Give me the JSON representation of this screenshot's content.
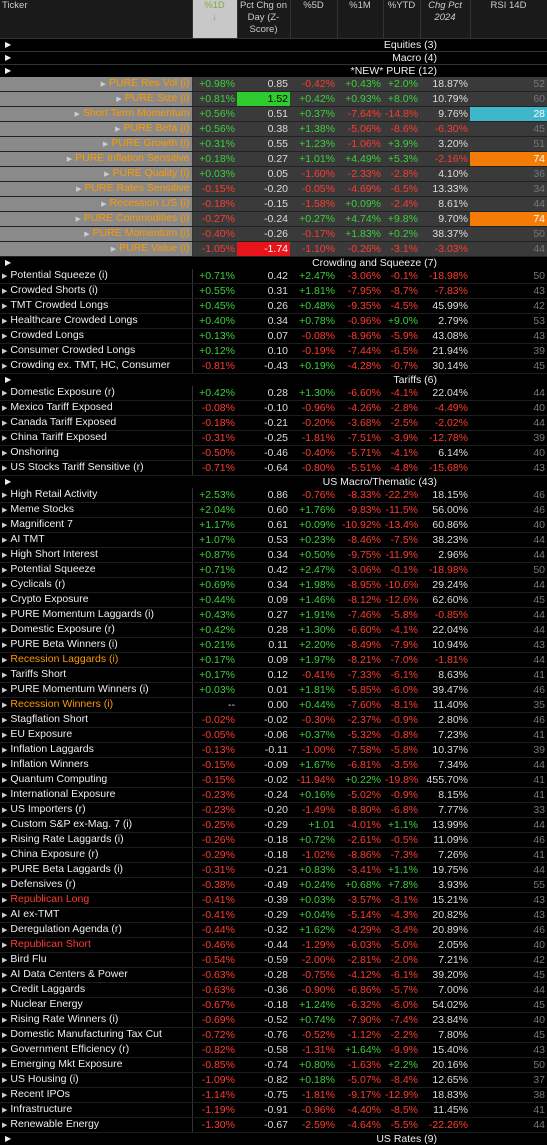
{
  "header": {
    "columns": [
      "Ticker",
      "%1D",
      "Pct Chg on Day (Z-Score)",
      "%5D",
      "%1M",
      "%YTD",
      "Chg Pct 2024",
      "RSI 14D"
    ],
    "sort_arrow": "↓"
  },
  "sections": [
    {
      "title": "Equities (3)",
      "rows": []
    },
    {
      "title": "Macro (4)",
      "rows": []
    },
    {
      "title": "*NEW* PURE (12)",
      "rows": [
        {
          "name": "PURE Res Vol (i)",
          "values": [
            "+0.98%",
            "0.85",
            "-0.42%",
            "+0.43%",
            "+2.0%",
            "18.87%",
            "52"
          ]
        },
        {
          "name": "PURE Size (i)",
          "values": [
            "+0.81%",
            "1.52",
            "+0.42%",
            "+0.93%",
            "+8.0%",
            "10.79%",
            "60"
          ]
        },
        {
          "name": "Short Term Momentum",
          "values": [
            "+0.56%",
            "0.51",
            "+0.37%",
            "-7.64%",
            "-14.8%",
            "9.76%",
            "28"
          ]
        },
        {
          "name": "PURE Beta (i)",
          "values": [
            "+0.56%",
            "0.38",
            "+1.38%",
            "-5.06%",
            "-8.6%",
            "-6.30%",
            "45"
          ]
        },
        {
          "name": "PURE Growth (i)",
          "values": [
            "+0.31%",
            "0.55",
            "+1.23%",
            "-1.06%",
            "+3.9%",
            "3.20%",
            "51"
          ]
        },
        {
          "name": "PURE Inflation Sensitive",
          "values": [
            "+0.18%",
            "0.27",
            "+1.01%",
            "+4.49%",
            "+5.3%",
            "-2.16%",
            "74"
          ]
        },
        {
          "name": "PURE Quality (i)",
          "values": [
            "+0.03%",
            "0.05",
            "-1.60%",
            "-2.33%",
            "-2.8%",
            "4.10%",
            "36"
          ]
        },
        {
          "name": "PURE Rates Sensitive",
          "values": [
            "-0.15%",
            "-0.20",
            "-0.05%",
            "-4.69%",
            "-6.5%",
            "13.33%",
            "34"
          ]
        },
        {
          "name": "Recession L/S (i)",
          "values": [
            "-0.18%",
            "-0.15",
            "-1.58%",
            "+0.09%",
            "-2.4%",
            "8.61%",
            "44"
          ]
        },
        {
          "name": "PURE Commodities (i)",
          "values": [
            "-0.27%",
            "-0.24",
            "+0.27%",
            "+4.74%",
            "+9.8%",
            "9.70%",
            "74"
          ]
        },
        {
          "name": "PURE Momentum (i)",
          "values": [
            "-0.40%",
            "-0.26",
            "-0.17%",
            "+1.83%",
            "+0.2%",
            "38.37%",
            "50"
          ]
        },
        {
          "name": "PURE Value (i)",
          "values": [
            "-1.05%",
            "-1.74",
            "-1.10%",
            "-0.26%",
            "-3.1%",
            "-3.03%",
            "44"
          ]
        }
      ]
    },
    {
      "title": "Crowding and Squeeze (7)",
      "rows": [
        {
          "name": "Potential Squeeze (i)",
          "values": [
            "+0.71%",
            "0.42",
            "+2.47%",
            "-3.06%",
            "-0.1%",
            "-18.98%",
            "50"
          ]
        },
        {
          "name": "Crowded Shorts (i)",
          "values": [
            "+0.55%",
            "0.31",
            "+1.81%",
            "-7.95%",
            "-8.7%",
            "-7.83%",
            "43"
          ]
        },
        {
          "name": "TMT Crowded Longs",
          "values": [
            "+0.45%",
            "0.26",
            "+0.48%",
            "-9.35%",
            "-4.5%",
            "45.99%",
            "42"
          ]
        },
        {
          "name": "Healthcare Crowded Longs",
          "values": [
            "+0.40%",
            "0.34",
            "+0.78%",
            "-0.96%",
            "+9.0%",
            "2.79%",
            "53"
          ]
        },
        {
          "name": "Crowded Longs",
          "values": [
            "+0.13%",
            "0.07",
            "-0.08%",
            "-8.96%",
            "-5.9%",
            "43.08%",
            "43"
          ]
        },
        {
          "name": "Consumer Crowded Longs",
          "values": [
            "+0.12%",
            "0.10",
            "-0.19%",
            "-7.44%",
            "-6.5%",
            "21.94%",
            "39"
          ]
        },
        {
          "name": "Crowding ex. TMT, HC, Consumer",
          "values": [
            "-0.81%",
            "-0.43",
            "+0.19%",
            "-4.28%",
            "-0.7%",
            "30.14%",
            "45"
          ]
        }
      ]
    },
    {
      "title": "Tariffs (6)",
      "rows": [
        {
          "name": "Domestic Exposure (r)",
          "values": [
            "+0.42%",
            "0.28",
            "+1.30%",
            "-6.60%",
            "-4.1%",
            "22.04%",
            "44"
          ]
        },
        {
          "name": "Mexico Tariff Exposed",
          "values": [
            "-0.08%",
            "-0.10",
            "-0.96%",
            "-4.26%",
            "-2.8%",
            "-4.49%",
            "40"
          ]
        },
        {
          "name": "Canada Tariff Exposed",
          "values": [
            "-0.18%",
            "-0.21",
            "-0.20%",
            "-3.68%",
            "-2.5%",
            "-2.02%",
            "44"
          ]
        },
        {
          "name": "China Tariff Exposed",
          "values": [
            "-0.31%",
            "-0.25",
            "-1.81%",
            "-7.51%",
            "-3.9%",
            "-12.78%",
            "39"
          ]
        },
        {
          "name": "Onshoring",
          "values": [
            "-0.50%",
            "-0.46",
            "-0.40%",
            "-5.71%",
            "-4.1%",
            "6.14%",
            "40"
          ]
        },
        {
          "name": "US Stocks Tariff Sensitive (r)",
          "values": [
            "-0.71%",
            "-0.64",
            "-0.80%",
            "-5.51%",
            "-4.8%",
            "-15.68%",
            "43"
          ]
        }
      ]
    },
    {
      "title": "US Macro/Thematic (43)",
      "rows": [
        {
          "name": "High Retail Activity",
          "values": [
            "+2.53%",
            "0.86",
            "-0.76%",
            "-8.33%",
            "-22.2%",
            "18.15%",
            "46"
          ]
        },
        {
          "name": "Meme Stocks",
          "values": [
            "+2.04%",
            "0.60",
            "+1.76%",
            "-9.83%",
            "-11.5%",
            "56.00%",
            "46"
          ]
        },
        {
          "name": "Magnificent 7",
          "values": [
            "+1.17%",
            "0.61",
            "+0.09%",
            "-10.92%",
            "-13.4%",
            "60.86%",
            "40"
          ]
        },
        {
          "name": "AI TMT",
          "values": [
            "+1.07%",
            "0.53",
            "+0.23%",
            "-8.46%",
            "-7.5%",
            "38.23%",
            "44"
          ]
        },
        {
          "name": "High Short Interest",
          "values": [
            "+0.87%",
            "0.34",
            "+0.50%",
            "-9.75%",
            "-11.9%",
            "2.96%",
            "44"
          ]
        },
        {
          "name": "Potential Squeeze",
          "values": [
            "+0.71%",
            "0.42",
            "+2.47%",
            "-3.06%",
            "-0.1%",
            "-18.98%",
            "50"
          ]
        },
        {
          "name": "Cyclicals (r)",
          "values": [
            "+0.69%",
            "0.34",
            "+1.98%",
            "-8.95%",
            "-10.6%",
            "29.24%",
            "44"
          ]
        },
        {
          "name": "Crypto Exposure",
          "values": [
            "+0.44%",
            "0.09",
            "+1.46%",
            "-8.12%",
            "-12.6%",
            "62.60%",
            "45"
          ]
        },
        {
          "name": "PURE Momentum Laggards (i)",
          "values": [
            "+0.43%",
            "0.27",
            "+1.91%",
            "-7.46%",
            "-5.8%",
            "-0.85%",
            "44"
          ]
        },
        {
          "name": "Domestic Exposure (r)",
          "values": [
            "+0.42%",
            "0.28",
            "+1.30%",
            "-6.60%",
            "-4.1%",
            "22.04%",
            "44"
          ]
        },
        {
          "name": "PURE Beta Winners (i)",
          "values": [
            "+0.21%",
            "0.11",
            "+2.20%",
            "-8.49%",
            "-7.9%",
            "10.94%",
            "43"
          ]
        },
        {
          "name": "Recession Laggards (i)",
          "color": "#f90",
          "values": [
            "+0.17%",
            "0.09",
            "+1.97%",
            "-8.21%",
            "-7.0%",
            "-1.81%",
            "44"
          ]
        },
        {
          "name": "Tariffs Short",
          "values": [
            "+0.17%",
            "0.12",
            "-0.41%",
            "-7.33%",
            "-6.1%",
            "8.63%",
            "41"
          ]
        },
        {
          "name": "PURE Momentum Winners (i)",
          "values": [
            "+0.03%",
            "0.01",
            "+1.81%",
            "-5.85%",
            "-6.0%",
            "39.47%",
            "46"
          ]
        },
        {
          "name": "Recession Winners (i)",
          "color": "#f90",
          "values": [
            "--",
            "0.00",
            "+0.44%",
            "-7.60%",
            "-8.1%",
            "11.40%",
            "35"
          ]
        },
        {
          "name": "Stagflation Short",
          "values": [
            "-0.02%",
            "-0.02",
            "-0.30%",
            "-2.37%",
            "-0.9%",
            "2.80%",
            "46"
          ]
        },
        {
          "name": "EU Exposure",
          "values": [
            "-0.05%",
            "-0.06",
            "+0.37%",
            "-5.32%",
            "-0.8%",
            "7.23%",
            "41"
          ]
        },
        {
          "name": "Inflation Laggards",
          "values": [
            "-0.13%",
            "-0.11",
            "-1.00%",
            "-7.58%",
            "-5.8%",
            "10.37%",
            "39"
          ]
        },
        {
          "name": "Inflation Winners",
          "values": [
            "-0.15%",
            "-0.09",
            "+1.67%",
            "-6.81%",
            "-3.5%",
            "7.34%",
            "44"
          ]
        },
        {
          "name": "Quantum Computing",
          "values": [
            "-0.15%",
            "-0.02",
            "-11.94%",
            "+0.22%",
            "-19.8%",
            "455.70%",
            "41"
          ]
        },
        {
          "name": "International Exposure",
          "values": [
            "-0.23%",
            "-0.24",
            "+0.16%",
            "-5.02%",
            "-0.9%",
            "8.15%",
            "41"
          ]
        },
        {
          "name": "US Importers (r)",
          "values": [
            "-0.23%",
            "-0.20",
            "-1.49%",
            "-8.80%",
            "-6.8%",
            "7.77%",
            "33"
          ]
        },
        {
          "name": "Custom S&P ex-Mag. 7 (i)",
          "values": [
            "-0.25%",
            "-0.29",
            "+1.01",
            "-4.01%",
            "+1.1%",
            "13.99%",
            "44"
          ]
        },
        {
          "name": "Rising Rate Laggards (i)",
          "values": [
            "-0.26%",
            "-0.18",
            "+0.72%",
            "-2.61%",
            "-0.5%",
            "11.09%",
            "46"
          ]
        },
        {
          "name": "China Exposure (r)",
          "values": [
            "-0.29%",
            "-0.18",
            "-1.02%",
            "-8.86%",
            "-7.3%",
            "7.26%",
            "41"
          ]
        },
        {
          "name": "PURE Beta Laggards (i)",
          "values": [
            "-0.31%",
            "-0.21",
            "+0.83%",
            "-3.41%",
            "+1.1%",
            "19.75%",
            "44"
          ]
        },
        {
          "name": "Defensives (r)",
          "values": [
            "-0.38%",
            "-0.49",
            "+0.24%",
            "+0.68%",
            "+7.8%",
            "3.93%",
            "55"
          ]
        },
        {
          "name": "Republican Long",
          "color": "#ff3b30",
          "values": [
            "-0.41%",
            "-0.39",
            "+0.03%",
            "-3.57%",
            "-3.1%",
            "15.21%",
            "43"
          ]
        },
        {
          "name": "AI ex-TMT",
          "values": [
            "-0.41%",
            "-0.29",
            "+0.04%",
            "-5.14%",
            "-4.3%",
            "20.82%",
            "43"
          ]
        },
        {
          "name": "Deregulation Agenda (r)",
          "values": [
            "-0.44%",
            "-0.32",
            "+1.62%",
            "-4.29%",
            "-3.4%",
            "20.89%",
            "46"
          ]
        },
        {
          "name": "Republican Short",
          "color": "#ff3b30",
          "values": [
            "-0.46%",
            "-0.44",
            "-1.29%",
            "-6.03%",
            "-5.0%",
            "2.05%",
            "40"
          ]
        },
        {
          "name": "Bird Flu",
          "values": [
            "-0.54%",
            "-0.59",
            "-2.00%",
            "-2.81%",
            "-2.0%",
            "7.21%",
            "42"
          ]
        },
        {
          "name": "AI Data Centers & Power",
          "values": [
            "-0.63%",
            "-0.28",
            "-0.75%",
            "-4.12%",
            "-6.1%",
            "39.20%",
            "45"
          ]
        },
        {
          "name": "Credit Laggards",
          "values": [
            "-0.63%",
            "-0.36",
            "-0.90%",
            "-6.86%",
            "-5.7%",
            "7.00%",
            "44"
          ]
        },
        {
          "name": "Nuclear Energy",
          "values": [
            "-0.67%",
            "-0.18",
            "+1.24%",
            "-6.32%",
            "-6.0%",
            "54.02%",
            "45"
          ]
        },
        {
          "name": "Rising Rate Winners (i)",
          "values": [
            "-0.69%",
            "-0.52",
            "+0.74%",
            "-7.90%",
            "-7.4%",
            "23.84%",
            "40"
          ]
        },
        {
          "name": "Domestic Manufacturing Tax Cut",
          "values": [
            "-0.72%",
            "-0.76",
            "-0.52%",
            "-1.12%",
            "-2.2%",
            "7.80%",
            "45"
          ]
        },
        {
          "name": "Government Efficiency (r)",
          "values": [
            "-0.82%",
            "-0.58",
            "-1.31%",
            "+1.64%",
            "-9.9%",
            "15.40%",
            "43"
          ]
        },
        {
          "name": "Emerging Mkt Exposure",
          "values": [
            "-0.85%",
            "-0.74",
            "+0.80%",
            "-1.63%",
            "+2.2%",
            "20.16%",
            "50"
          ]
        },
        {
          "name": "US Housing (i)",
          "values": [
            "-1.09%",
            "-0.82",
            "+0.18%",
            "-5.07%",
            "-8.4%",
            "12.65%",
            "37"
          ]
        },
        {
          "name": "Recent IPOs",
          "values": [
            "-1.14%",
            "-0.75",
            "-1.81%",
            "-9.17%",
            "-12.9%",
            "18.83%",
            "38"
          ]
        },
        {
          "name": "Infrastructure",
          "values": [
            "-1.19%",
            "-0.91",
            "-0.96%",
            "-4.40%",
            "-8.5%",
            "11.45%",
            "41"
          ]
        },
        {
          "name": "Renewable Energy",
          "values": [
            "-1.30%",
            "-0.67",
            "-2.59%",
            "-4.64%",
            "-5.5%",
            "-22.26%",
            "44"
          ]
        }
      ]
    },
    {
      "title": "US Rates (9)",
      "rows": []
    }
  ]
}
